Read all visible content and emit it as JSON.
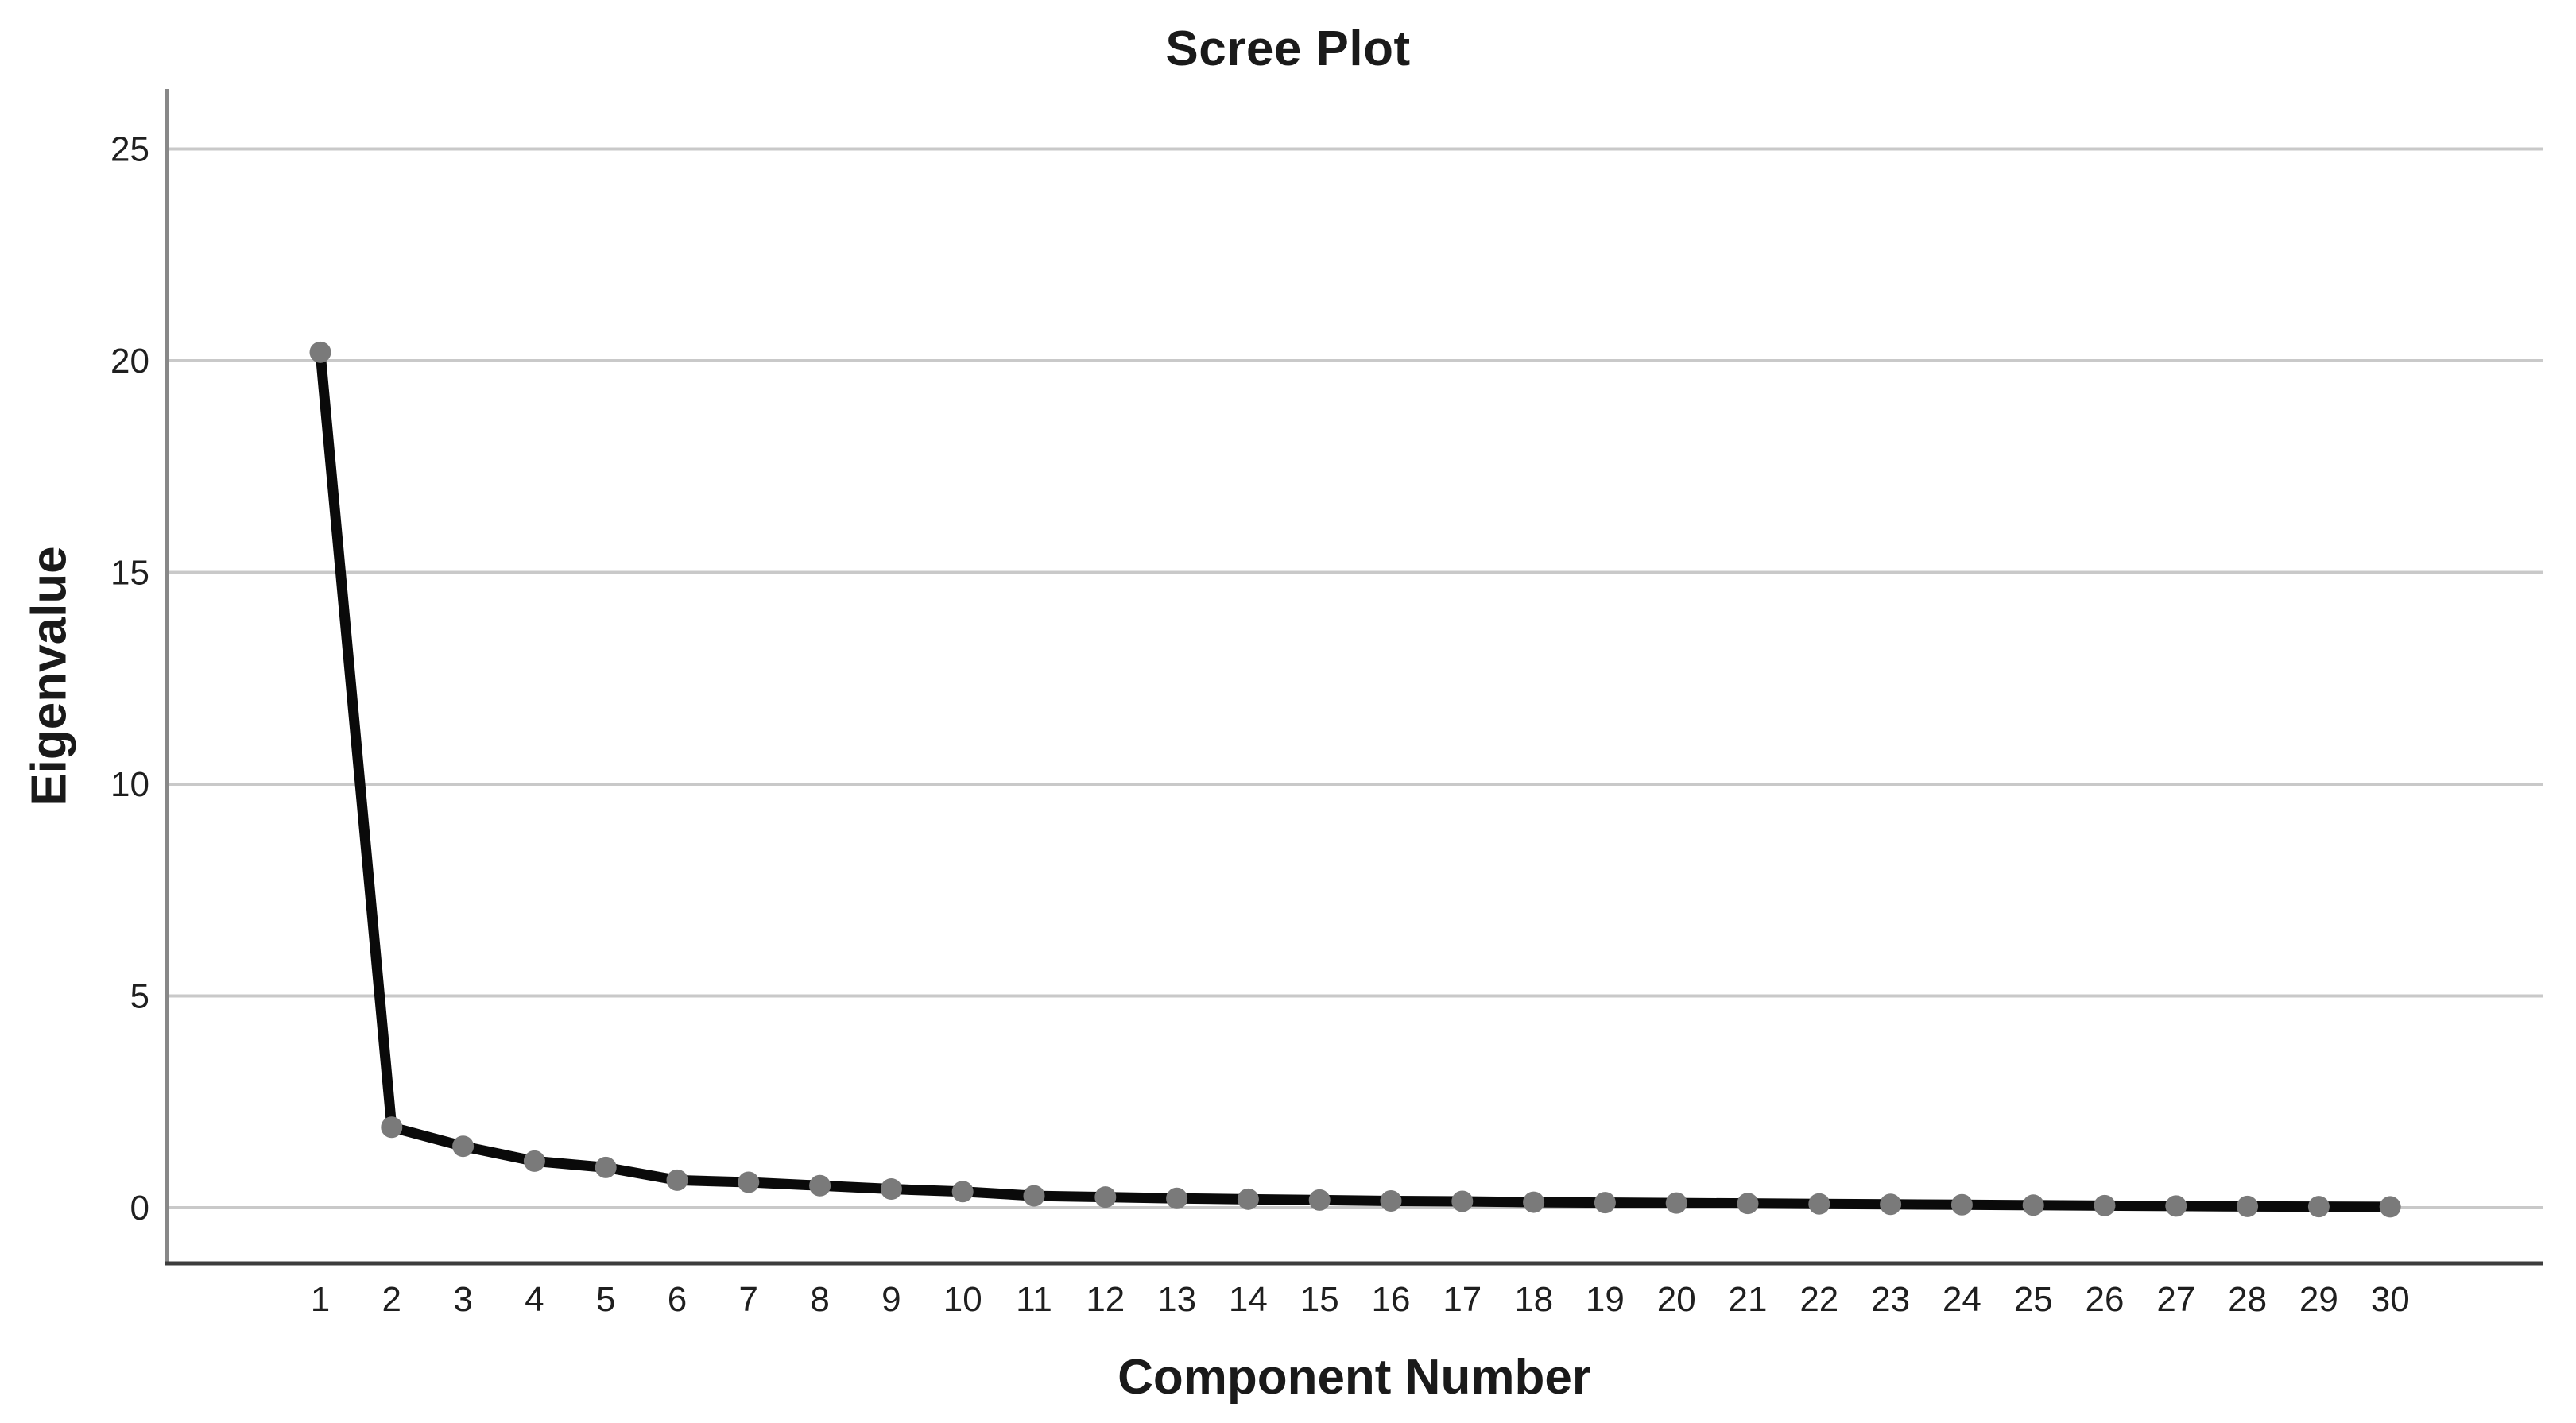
{
  "title": "Scree Plot",
  "chart_data": {
    "type": "line",
    "title": "Scree Plot",
    "xlabel": "Component Number",
    "ylabel": "Eigenvalue",
    "series_name": "Eigenvalue",
    "x": [
      1,
      2,
      3,
      4,
      5,
      6,
      7,
      8,
      9,
      10,
      11,
      12,
      13,
      14,
      15,
      16,
      17,
      18,
      19,
      20,
      21,
      22,
      23,
      24,
      25,
      26,
      27,
      28,
      29,
      30
    ],
    "values": [
      20.2,
      1.9,
      1.45,
      1.1,
      0.95,
      0.65,
      0.6,
      0.52,
      0.44,
      0.38,
      0.28,
      0.25,
      0.22,
      0.2,
      0.18,
      0.16,
      0.15,
      0.13,
      0.12,
      0.11,
      0.1,
      0.09,
      0.08,
      0.07,
      0.06,
      0.05,
      0.04,
      0.03,
      0.025,
      0.02
    ],
    "y_ticks": [
      0,
      5,
      10,
      15,
      20,
      25
    ],
    "x_tick_labels": [
      "1",
      "2",
      "3",
      "4",
      "5",
      "6",
      "7",
      "8",
      "9",
      "10",
      "11",
      "12",
      "13",
      "14",
      "15",
      "16",
      "17",
      "18",
      "19",
      "20",
      "21",
      "22",
      "23",
      "24",
      "25",
      "26",
      "27",
      "28",
      "29",
      "30"
    ],
    "ylim": [
      -1.3,
      26.4
    ],
    "grid": "horizontal-only",
    "legend": "none",
    "marker": "filled-circle",
    "colors": {
      "line": "#0a0a0a",
      "marker": "#7a7a7a",
      "gridline": "#c9c9c9",
      "axis_left": "#888888",
      "axis_bottom": "#3d3d3d",
      "tick_text": "#1f1f1f"
    }
  }
}
